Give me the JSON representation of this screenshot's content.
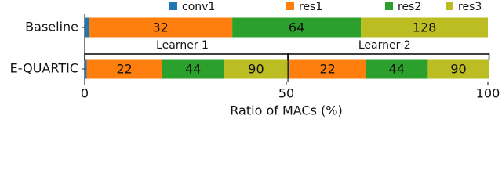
{
  "chart_data": {
    "type": "stacked_barh",
    "xlabel": "Ratio of MACs (%)",
    "xlim": [
      0,
      100
    ],
    "xticks": [
      0,
      50,
      100
    ],
    "series": [
      {
        "name": "conv1",
        "color": "#1f77b4"
      },
      {
        "name": "res1",
        "color": "#ff7f0e"
      },
      {
        "name": "res2",
        "color": "#2ca02c"
      },
      {
        "name": "res3",
        "color": "#bcbd22"
      }
    ],
    "rows": [
      {
        "category": "Baseline",
        "stacks": [
          {
            "values": [
              1,
              35.6,
              31.9,
              31.5
            ],
            "labels": [
              null,
              "32",
              "64",
              "128"
            ]
          }
        ]
      },
      {
        "category": "E-QUARTIC",
        "stacks": [
          {
            "name": "Learner 1",
            "values": [
              0.5,
              18.7,
              15.4,
              15.8
            ],
            "labels": [
              null,
              "22",
              "44",
              "90"
            ]
          },
          {
            "name": "Learner 2",
            "values": [
              0.4,
              18.9,
              15.4,
              15.2
            ],
            "labels": [
              null,
              "22",
              "44",
              "90"
            ]
          }
        ]
      }
    ]
  }
}
